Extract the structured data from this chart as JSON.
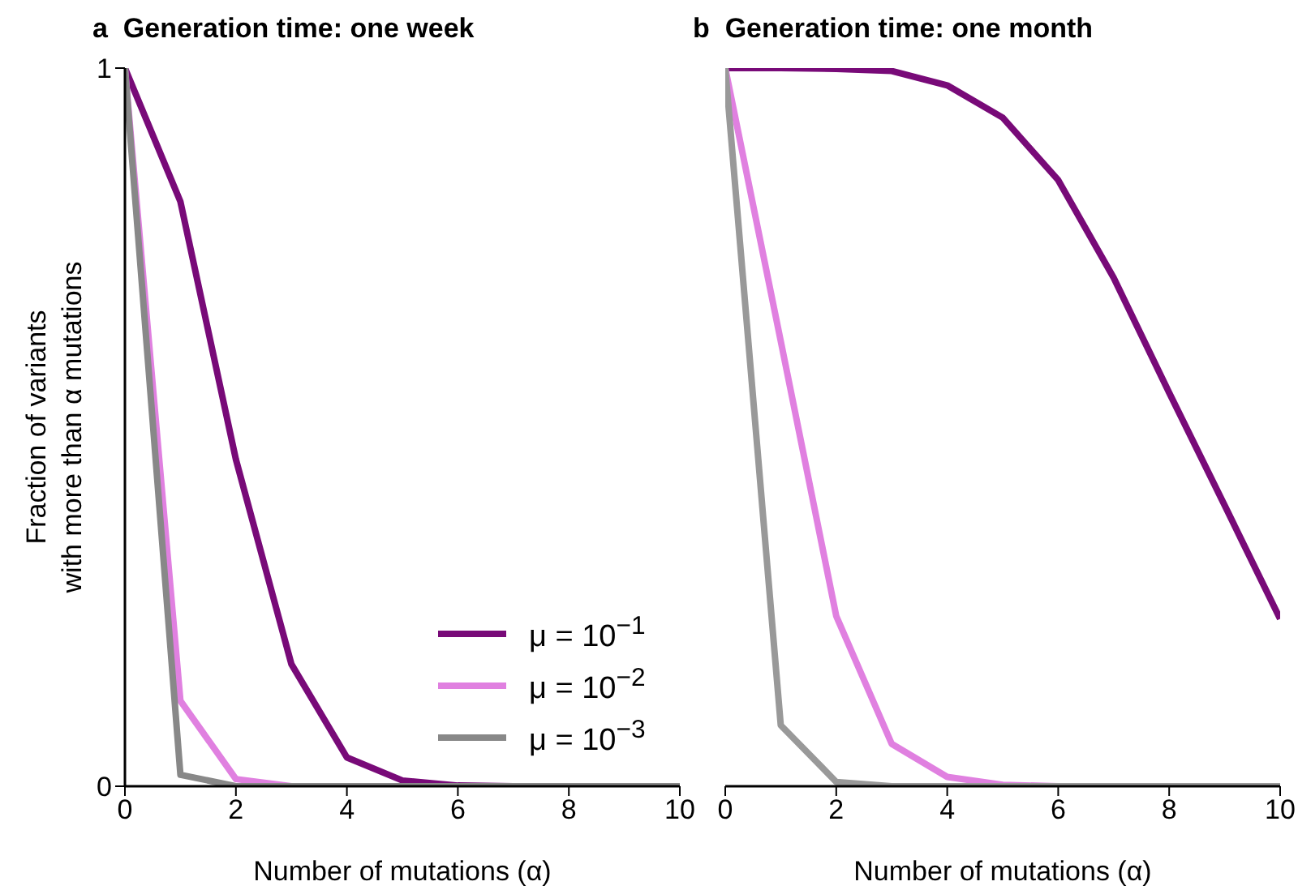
{
  "chart_data": [
    {
      "type": "line",
      "title": "a  Generation time: one week",
      "xlabel": "Number of mutations (α)",
      "ylabel": "Fraction of variants\nwith more than α mutations",
      "x": [
        0,
        1,
        2,
        3,
        4,
        5,
        6,
        7,
        8,
        9,
        10
      ],
      "xlim": [
        0,
        10
      ],
      "xticks": [
        0,
        2,
        4,
        6,
        8,
        10
      ],
      "ylim": [
        0,
        1
      ],
      "yticks": [
        0,
        1
      ],
      "legend": "bottom right",
      "line_style": "solid",
      "series": [
        {
          "name": "μ = 10$^{−1}$",
          "color": "#780a78",
          "values": [
            1,
            0.814,
            0.455,
            0.17,
            0.04,
            0.008,
            0.001,
            0,
            0,
            null,
            null
          ]
        },
        {
          "name": "μ = 10$^{−2}$",
          "color": "#e080e0",
          "values": [
            1,
            0.119,
            0.01,
            0,
            0,
            0,
            0,
            0,
            0,
            null,
            null
          ]
        },
        {
          "name": "μ = 10$^{−3}$",
          "color": "#888888",
          "values": [
            1,
            0.016,
            0,
            0,
            0,
            0,
            0,
            0,
            0,
            0,
            0
          ]
        }
      ]
    },
    {
      "type": "line",
      "title": "b  Generation time: one month",
      "xlabel": "Number of mutations (α)",
      "x": [
        0,
        1,
        2,
        3,
        4,
        5,
        6,
        7,
        8,
        9,
        10
      ],
      "xlim": [
        0,
        10
      ],
      "xticks": [
        0,
        2,
        4,
        6,
        8,
        10
      ],
      "ylim": [
        0,
        1
      ],
      "tick_labels": "x",
      "legend": false,
      "line_style": "solid",
      "series": [
        {
          "color": "#780a78",
          "values": [
            1,
            1,
            0.999,
            0.996,
            0.976,
            0.931,
            0.844,
            0.708,
            0.548,
            0.391,
            0.233
          ]
        },
        {
          "color": "#e080e0",
          "values": [
            1,
            0.62,
            0.237,
            0.059,
            0.013,
            0.002,
            0,
            0,
            null,
            null,
            null
          ]
        },
        {
          "color": "#999999",
          "values": [
            1,
            0.085,
            0.006,
            0,
            0,
            0,
            0,
            0,
            0,
            0,
            0
          ]
        }
      ]
    }
  ]
}
